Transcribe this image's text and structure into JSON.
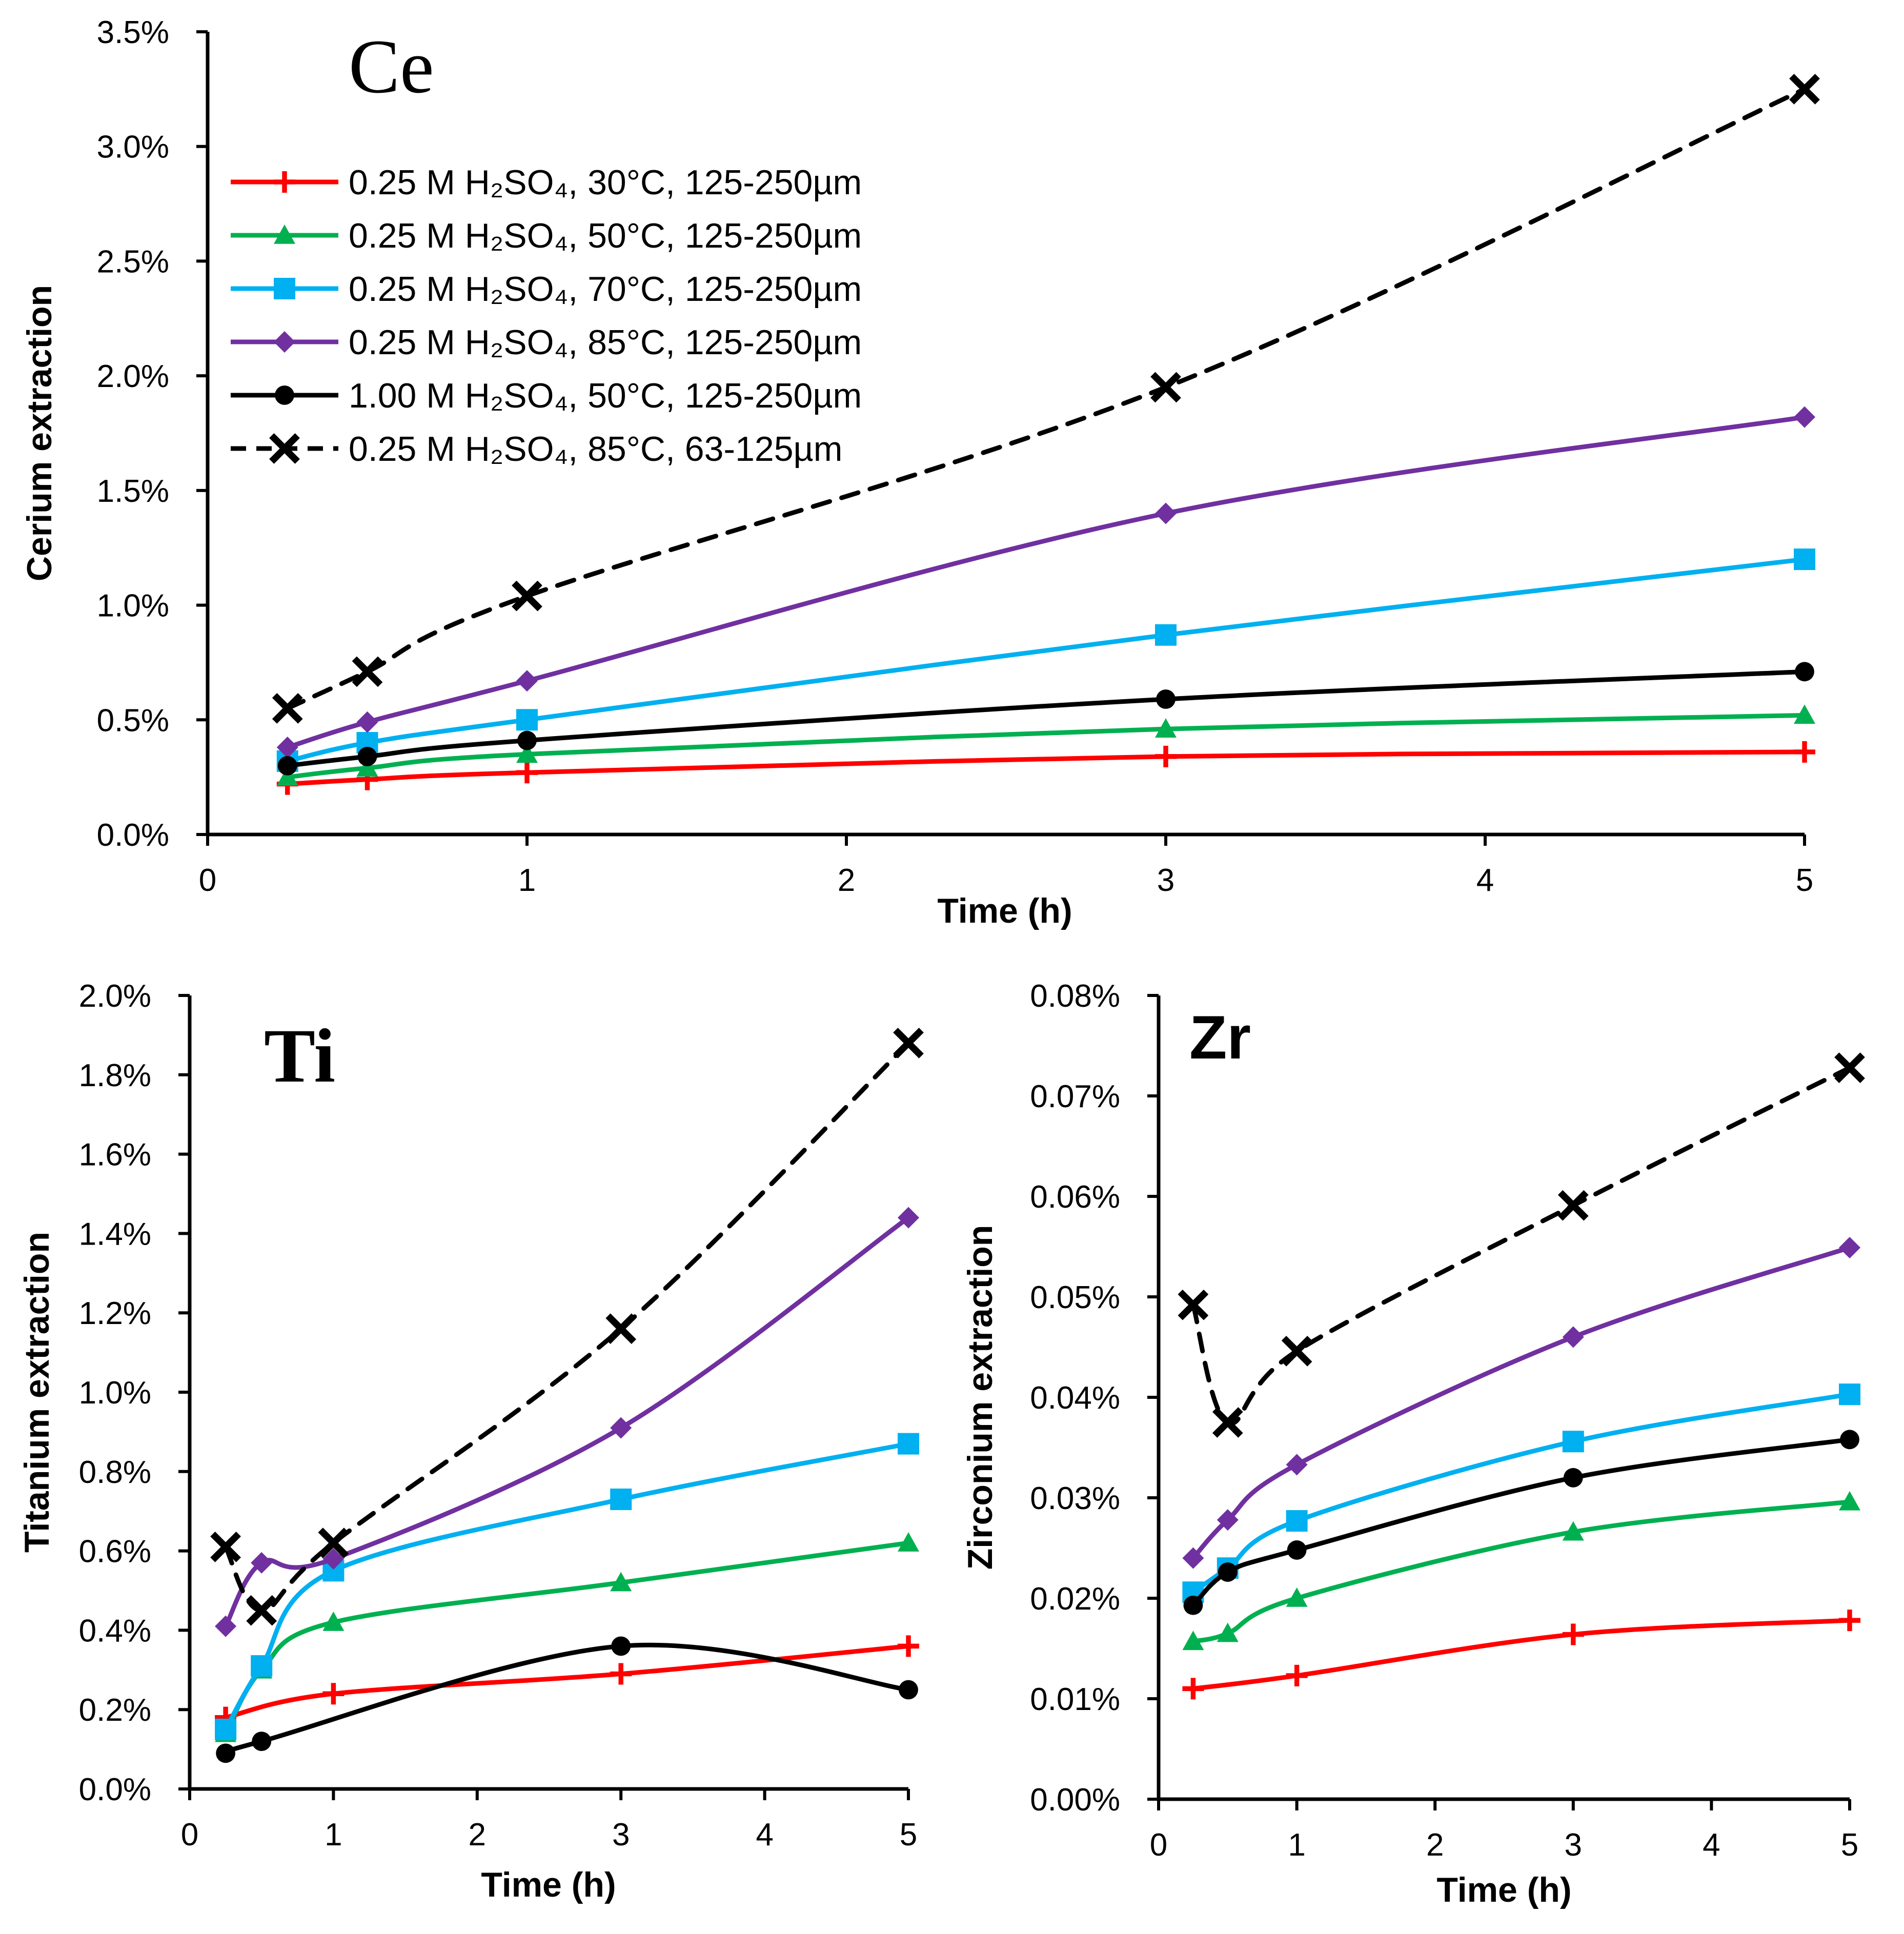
{
  "chart_data": [
    {
      "type": "line",
      "id": "ce",
      "title": "Ce",
      "xlabel": "Time (h)",
      "ylabel": "Cerium extraction",
      "xlim": [
        0,
        5
      ],
      "ylim": [
        0,
        0.035
      ],
      "x_ticks": [
        "0",
        "1",
        "2",
        "3",
        "4",
        "5"
      ],
      "y_ticks": [
        "0.0%",
        "0.5%",
        "1.0%",
        "1.5%",
        "2.0%",
        "2.5%",
        "3.0%",
        "3.5%"
      ],
      "legend_position": "top-left",
      "series": [
        {
          "name": "0.25 M H₂SO₄, 30°C, 125-250µm",
          "color": "#ff0000",
          "marker": "plus",
          "dash": false,
          "x": [
            0.25,
            0.5,
            1,
            3,
            5
          ],
          "y": [
            0.0022,
            0.0024,
            0.0027,
            0.0034,
            0.0036
          ]
        },
        {
          "name": "0.25 M H₂SO₄, 50°C, 125-250µm",
          "color": "#00b050",
          "marker": "triangle",
          "dash": false,
          "x": [
            0.25,
            0.5,
            1,
            3,
            5
          ],
          "y": [
            0.0025,
            0.0029,
            0.0035,
            0.0046,
            0.0052
          ]
        },
        {
          "name": "0.25 M H₂SO₄, 70°C, 125-250µm",
          "color": "#00b0f0",
          "marker": "square",
          "dash": false,
          "x": [
            0.25,
            0.5,
            1,
            3,
            5
          ],
          "y": [
            0.0032,
            0.004,
            0.005,
            0.0087,
            0.012
          ]
        },
        {
          "name": "0.25 M H₂SO₄, 85°C, 125-250µm",
          "color": "#7030a0",
          "marker": "diamond",
          "dash": false,
          "x": [
            0.25,
            0.5,
            1,
            3,
            5
          ],
          "y": [
            0.0038,
            0.0049,
            0.0067,
            0.014,
            0.0182
          ]
        },
        {
          "name": "1.00 M H₂SO₄, 50°C, 125-250µm",
          "color": "#000000",
          "marker": "circle",
          "dash": false,
          "x": [
            0.25,
            0.5,
            1,
            3,
            5
          ],
          "y": [
            0.003,
            0.0034,
            0.0041,
            0.0059,
            0.0071
          ]
        },
        {
          "name": "0.25 M H₂SO₄, 85°C, 63-125µm",
          "color": "#000000",
          "marker": "x",
          "dash": true,
          "x": [
            0.25,
            0.5,
            1,
            3,
            5
          ],
          "y": [
            0.0055,
            0.0071,
            0.0104,
            0.0195,
            0.0325
          ]
        }
      ]
    },
    {
      "type": "line",
      "id": "ti",
      "title": "Ti",
      "xlabel": "Time (h)",
      "ylabel": "Titanium extraction",
      "xlim": [
        0,
        5
      ],
      "ylim": [
        0,
        0.02
      ],
      "x_ticks": [
        "0",
        "1",
        "2",
        "3",
        "4",
        "5"
      ],
      "y_ticks": [
        "0.0%",
        "0.2%",
        "0.4%",
        "0.6%",
        "0.8%",
        "1.0%",
        "1.2%",
        "1.4%",
        "1.6%",
        "1.8%",
        "2.0%"
      ],
      "series": [
        {
          "name": "0.25 M H₂SO₄, 30°C, 125-250µm",
          "color": "#ff0000",
          "marker": "plus",
          "dash": false,
          "x": [
            0.25,
            1,
            3,
            5
          ],
          "y": [
            0.0018,
            0.0024,
            0.0029,
            0.0036
          ]
        },
        {
          "name": "0.25 M H₂SO₄, 50°C, 125-250µm",
          "color": "#00b050",
          "marker": "triangle",
          "dash": false,
          "x": [
            0.25,
            0.5,
            1,
            3,
            5
          ],
          "y": [
            0.0014,
            0.003,
            0.0042,
            0.0052,
            0.0062
          ]
        },
        {
          "name": "0.25 M H₂SO₄, 70°C, 125-250µm",
          "color": "#00b0f0",
          "marker": "square",
          "dash": false,
          "x": [
            0.25,
            0.5,
            1,
            3,
            5
          ],
          "y": [
            0.0015,
            0.0031,
            0.0055,
            0.0073,
            0.0087
          ]
        },
        {
          "name": "0.25 M H₂SO₄, 85°C, 125-250µm",
          "color": "#7030a0",
          "marker": "diamond",
          "dash": false,
          "x": [
            0.25,
            0.5,
            1,
            3,
            5
          ],
          "y": [
            0.0041,
            0.0057,
            0.0058,
            0.0091,
            0.0144
          ]
        },
        {
          "name": "1.00 M H₂SO₄, 50°C, 125-250µm",
          "color": "#000000",
          "marker": "circle",
          "dash": false,
          "x": [
            0.25,
            0.5,
            3,
            5
          ],
          "y": [
            0.0009,
            0.0012,
            0.0036,
            0.0025
          ]
        },
        {
          "name": "0.25 M H₂SO₄, 85°C, 63-125µm",
          "color": "#000000",
          "marker": "x",
          "dash": true,
          "x": [
            0.25,
            0.5,
            1,
            3,
            5
          ],
          "y": [
            0.0061,
            0.0045,
            0.0062,
            0.0116,
            0.0188
          ]
        }
      ]
    },
    {
      "type": "line",
      "id": "zr",
      "title": "Zr",
      "xlabel": "Time (h)",
      "ylabel": "Zirconium extraction",
      "xlim": [
        0,
        5
      ],
      "ylim": [
        0,
        0.0008
      ],
      "x_ticks": [
        "0",
        "1",
        "2",
        "3",
        "4",
        "5"
      ],
      "y_ticks": [
        "0.00%",
        "0.01%",
        "0.02%",
        "0.03%",
        "0.04%",
        "0.05%",
        "0.06%",
        "0.07%",
        "0.08%"
      ],
      "series": [
        {
          "name": "0.25 M H₂SO₄, 30°C, 125-250µm",
          "color": "#ff0000",
          "marker": "plus",
          "dash": false,
          "x": [
            0.25,
            1,
            3,
            5
          ],
          "y": [
            0.00011,
            0.000123,
            0.000164,
            0.000178
          ]
        },
        {
          "name": "0.25 M H₂SO₄, 50°C, 125-250µm",
          "color": "#00b050",
          "marker": "triangle",
          "dash": false,
          "x": [
            0.25,
            0.5,
            1,
            3,
            5
          ],
          "y": [
            0.000157,
            0.000165,
            0.0002,
            0.000266,
            0.000296
          ]
        },
        {
          "name": "0.25 M H₂SO₄, 70°C, 125-250µm",
          "color": "#00b0f0",
          "marker": "square",
          "dash": false,
          "x": [
            0.25,
            0.5,
            1,
            3,
            5
          ],
          "y": [
            0.000206,
            0.00023,
            0.000277,
            0.000356,
            0.000403
          ]
        },
        {
          "name": "0.25 M H₂SO₄, 85°C, 125-250µm",
          "color": "#7030a0",
          "marker": "diamond",
          "dash": false,
          "x": [
            0.25,
            0.5,
            1,
            3,
            5
          ],
          "y": [
            0.00024,
            0.000278,
            0.000333,
            0.00046,
            0.000549
          ]
        },
        {
          "name": "1.00 M H₂SO₄, 50°C, 125-250µm",
          "color": "#000000",
          "marker": "circle",
          "dash": false,
          "x": [
            0.25,
            0.5,
            1,
            3,
            5
          ],
          "y": [
            0.000193,
            0.000226,
            0.000248,
            0.00032,
            0.000358
          ]
        },
        {
          "name": "0.25 M H₂SO₄, 85°C, 63-125µm",
          "color": "#000000",
          "marker": "x",
          "dash": true,
          "x": [
            0.25,
            0.5,
            1,
            3,
            5
          ],
          "y": [
            0.000492,
            0.000375,
            0.000446,
            0.000591,
            0.000728
          ]
        }
      ]
    }
  ]
}
